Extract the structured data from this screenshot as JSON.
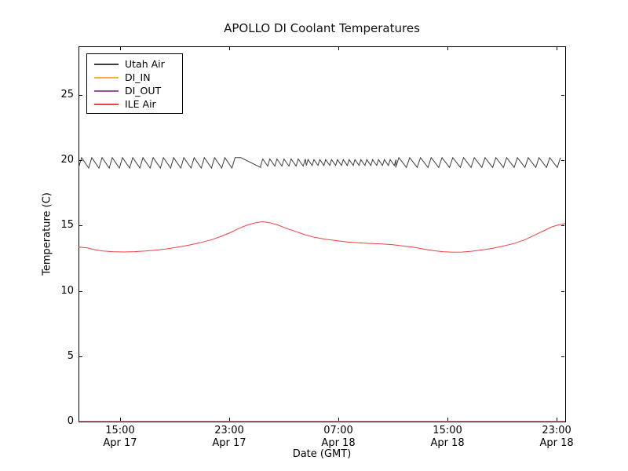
{
  "chart_data": {
    "type": "line",
    "title": "APOLLO DI Coolant Temperatures",
    "xlabel": "Date (GMT)",
    "ylabel": "Temperature (C)",
    "grid": false,
    "legend_position": "upper left",
    "ylim": [
      0,
      28.72
    ],
    "xlim_hours": [
      0,
      35.68
    ],
    "yticks": [
      0,
      5,
      10,
      15,
      20,
      25
    ],
    "xticks": [
      {
        "time": "15:00",
        "date": "Apr 17",
        "hour": 3.05
      },
      {
        "time": "23:00",
        "date": "Apr 17",
        "hour": 11.05
      },
      {
        "time": "07:00",
        "date": "Apr 18",
        "hour": 19.05
      },
      {
        "time": "15:00",
        "date": "Apr 18",
        "hour": 27.05
      },
      {
        "time": "23:00",
        "date": "Apr 18",
        "hour": 35.05
      }
    ],
    "axis_color": "#000000",
    "series": [
      {
        "name": "Utah Air",
        "color": "#3d3d3d",
        "shape": "sawtooth",
        "description": "rapid sawtooth oscillation around 20 C",
        "rise_fraction": 0.3,
        "segments": [
          {
            "kind": "saw",
            "t0": 0.0,
            "t1": 11.9,
            "period": 0.75,
            "low": 19.4,
            "high": 20.2
          },
          {
            "kind": "ramp",
            "t0": 11.9,
            "v0": 20.2,
            "t1": 13.35,
            "v1": 19.45
          },
          {
            "kind": "saw",
            "t0": 13.35,
            "t1": 16.7,
            "period": 0.52,
            "low": 19.55,
            "high": 20.1
          },
          {
            "kind": "saw",
            "t0": 16.7,
            "t1": 23.25,
            "period": 0.43,
            "low": 19.6,
            "high": 20.05
          },
          {
            "kind": "saw",
            "t0": 23.25,
            "t1": 35.45,
            "period": 0.79,
            "low": 19.45,
            "high": 20.2
          }
        ]
      },
      {
        "name": "DI_IN",
        "color": "#ffaa42",
        "shape": "constant",
        "value": 0,
        "opacity": 1
      },
      {
        "name": "DI_OUT",
        "color": "#9c4f9f",
        "shape": "constant",
        "value": 0,
        "opacity": 0.65
      },
      {
        "name": "ILE Air",
        "color": "#ee4040",
        "shape": "points",
        "points": [
          [
            0,
            13.35
          ],
          [
            0.6,
            13.3
          ],
          [
            1.2,
            13.15
          ],
          [
            1.8,
            13.05
          ],
          [
            2.5,
            13.0
          ],
          [
            3.3,
            12.98
          ],
          [
            4.1,
            13.0
          ],
          [
            4.9,
            13.05
          ],
          [
            5.7,
            13.12
          ],
          [
            6.5,
            13.22
          ],
          [
            7.3,
            13.35
          ],
          [
            8.1,
            13.5
          ],
          [
            8.9,
            13.68
          ],
          [
            9.7,
            13.9
          ],
          [
            10.4,
            14.15
          ],
          [
            11.1,
            14.45
          ],
          [
            11.8,
            14.8
          ],
          [
            12.4,
            15.05
          ],
          [
            13.0,
            15.22
          ],
          [
            13.5,
            15.3
          ],
          [
            14.0,
            15.22
          ],
          [
            14.6,
            15.05
          ],
          [
            15.2,
            14.8
          ],
          [
            15.9,
            14.55
          ],
          [
            16.6,
            14.3
          ],
          [
            17.3,
            14.1
          ],
          [
            18.1,
            13.95
          ],
          [
            18.9,
            13.85
          ],
          [
            19.7,
            13.75
          ],
          [
            20.5,
            13.68
          ],
          [
            21.3,
            13.63
          ],
          [
            22.1,
            13.6
          ],
          [
            22.9,
            13.55
          ],
          [
            23.7,
            13.45
          ],
          [
            24.5,
            13.35
          ],
          [
            25.3,
            13.2
          ],
          [
            26.0,
            13.08
          ],
          [
            26.7,
            13.0
          ],
          [
            27.4,
            12.96
          ],
          [
            28.1,
            12.97
          ],
          [
            28.8,
            13.03
          ],
          [
            29.5,
            13.12
          ],
          [
            30.3,
            13.25
          ],
          [
            31.1,
            13.42
          ],
          [
            31.9,
            13.62
          ],
          [
            32.7,
            13.9
          ],
          [
            33.4,
            14.25
          ],
          [
            34.1,
            14.6
          ],
          [
            34.7,
            14.9
          ],
          [
            35.2,
            15.05
          ],
          [
            35.68,
            15.15
          ]
        ]
      }
    ]
  }
}
